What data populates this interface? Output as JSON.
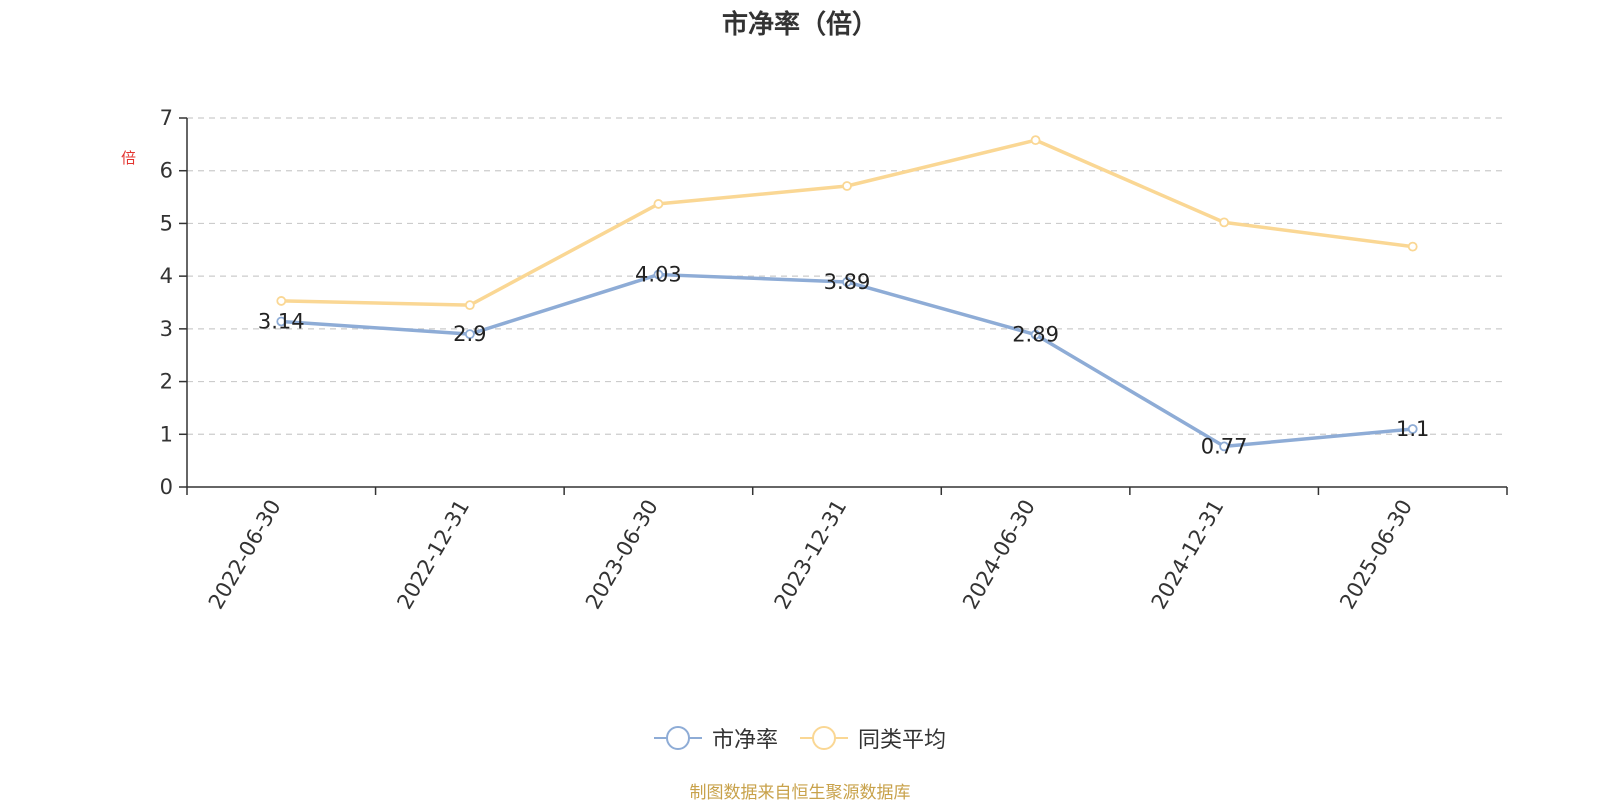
{
  "chart_data": {
    "type": "line",
    "title": "市净率（倍）",
    "y_unit": "倍",
    "categories": [
      "2022-06-30",
      "2022-12-31",
      "2023-06-30",
      "2023-12-31",
      "2024-06-30",
      "2024-12-31",
      "2025-06-30"
    ],
    "ylim": [
      0,
      7
    ],
    "yticks": [
      0,
      1,
      2,
      3,
      4,
      5,
      6,
      7
    ],
    "grid": true,
    "legend_position": "bottom-center",
    "series": [
      {
        "name": "市净率",
        "color": "#8eacd6",
        "values": [
          3.14,
          2.9,
          4.03,
          3.89,
          2.89,
          0.77,
          1.1
        ],
        "labels": [
          "3.14",
          "2.9",
          "4.03",
          "3.89",
          "2.89",
          "0.77",
          "1.1"
        ]
      },
      {
        "name": "同类平均",
        "color": "#fad794",
        "values": [
          3.53,
          3.45,
          5.37,
          5.71,
          6.58,
          5.02,
          4.56
        ]
      }
    ]
  },
  "source_text": "制图数据来自恒生聚源数据库"
}
